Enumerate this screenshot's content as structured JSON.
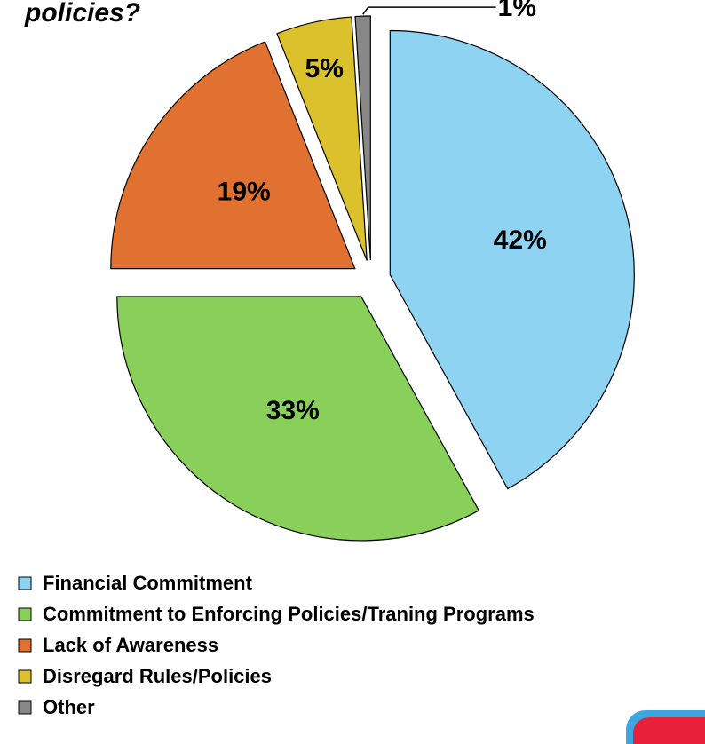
{
  "chart_data": {
    "type": "pie",
    "title": "policies?",
    "categories": [
      "Financial Commitment",
      "Commitment to Enforcing Policies/Traning Programs",
      "Lack of Awareness",
      "Disregard Rules/Policies",
      "Other"
    ],
    "values": [
      42,
      33,
      19,
      5,
      1
    ],
    "value_labels": [
      "42%",
      "33%",
      "19%",
      "5%",
      "1%"
    ],
    "colors": [
      "#8fd3f3",
      "#88d05a",
      "#e07131",
      "#dbc22c",
      "#888888"
    ],
    "legend": "bottom",
    "exploded": true
  }
}
